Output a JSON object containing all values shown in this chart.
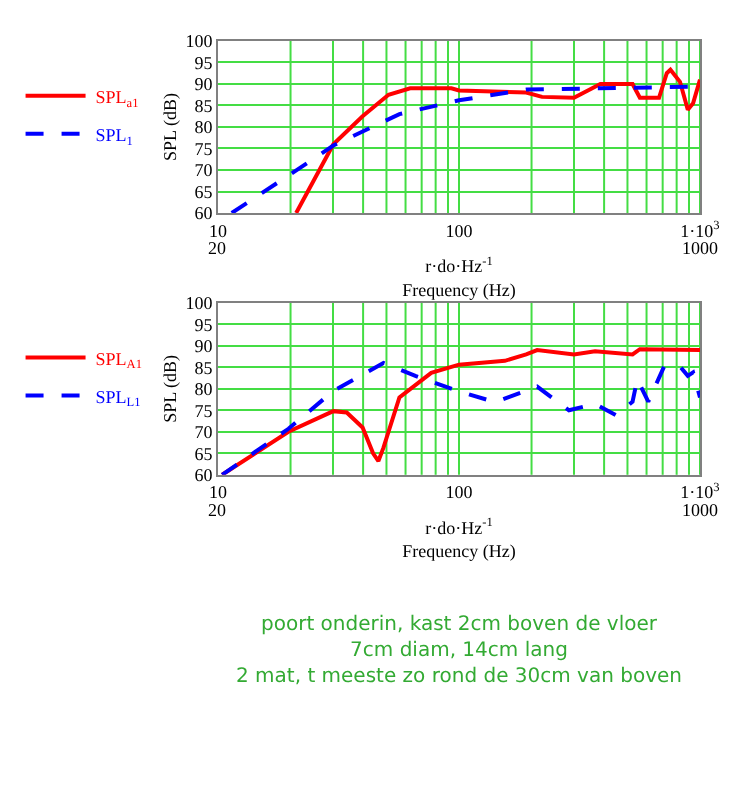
{
  "chart_data": [
    {
      "type": "line",
      "xlabel": "r·do·Hz$^{-1}$\nFrequency (Hz)",
      "ylabel": "SPL (dB)",
      "log": "x",
      "xlim": [
        10,
        1000
      ],
      "xticks": [
        10,
        100,
        {
          "value": 1000,
          "label": "1·10$^{3}$"
        }
      ],
      "ylim": [
        60,
        100
      ],
      "yticks": [
        60,
        65,
        70,
        75,
        80,
        85,
        90,
        95,
        100
      ],
      "grid": true,
      "legend": "left",
      "marker": "none",
      "annotations": [
        "20",
        "1000"
      ],
      "series": [
        {
          "name": "SPL$_{a1}$",
          "color": "#ff0000",
          "line_style": "solid",
          "x": [
            21.1,
            30.1,
            39.8,
            51,
            62.7,
            93,
            100,
            190,
            221,
            300,
            386,
            525,
            563,
            676,
            728,
            754,
            826,
            890,
            936,
            1000
          ],
          "values": [
            60,
            76,
            82.5,
            87.5,
            89,
            89,
            88.5,
            88,
            87,
            86.8,
            90,
            90,
            86.8,
            86.8,
            92.5,
            93.3,
            90.5,
            84,
            85.5,
            91
          ]
        },
        {
          "name": "SPL$_{1}$",
          "color": "#0000ff",
          "line_style": "dashed",
          "x": [
            11.4,
            20.6,
            30.1,
            56.6,
            100,
            190,
            1000
          ],
          "values": [
            60,
            69.5,
            75.7,
            83,
            86.2,
            88.7,
            89.4
          ]
        }
      ]
    },
    {
      "type": "line",
      "xlabel": "r·do·Hz$^{-1}$\nFrequency (Hz)",
      "ylabel": "SPL (dB)",
      "log": "x",
      "xlim": [
        10,
        1000
      ],
      "xticks": [
        10,
        100,
        {
          "value": 1000,
          "label": "1·10$^{3}$"
        }
      ],
      "ylim": [
        60,
        100
      ],
      "yticks": [
        60,
        65,
        70,
        75,
        80,
        85,
        90,
        95,
        100
      ],
      "grid": true,
      "legend": "left",
      "marker": "none",
      "annotations": [
        "20",
        "1000",
        "poort onderin, kast 2cm boven de vloer\n7cm diam, 14cm lang\n2 mat, t meeste zo rond de 30cm van boven"
      ],
      "series": [
        {
          "name": "SPL$_{A1}$",
          "color": "#ff0000",
          "line_style": "solid",
          "x": [
            10.4,
            19.6,
            30.1,
            34.2,
            39.8,
            44,
            46.3,
            48.6,
            56.6,
            76.7,
            100,
            155,
            190,
            211,
            300,
            367,
            525,
            563,
            1000
          ],
          "values": [
            60,
            70,
            74.8,
            74.5,
            71,
            65,
            63.2,
            66.3,
            78,
            83.7,
            85.6,
            86.5,
            88,
            89,
            88,
            88.7,
            88,
            89.2,
            89
          ]
        },
        {
          "name": "SPL$_{L1}$",
          "color": "#0000ff",
          "line_style": "dashed",
          "x": [
            10.4,
            19.6,
            30.1,
            48.6,
            65.9,
            100,
            141,
            211,
            286,
            367,
            450,
            525,
            549,
            610,
            710,
            826,
            890,
            936,
            1000
          ],
          "values": [
            60,
            70.7,
            79.5,
            86,
            83,
            79.4,
            76.9,
            80.5,
            75,
            76.5,
            73.8,
            77,
            82.2,
            77,
            85.2,
            85.2,
            83,
            83.8,
            78
          ]
        }
      ]
    }
  ]
}
